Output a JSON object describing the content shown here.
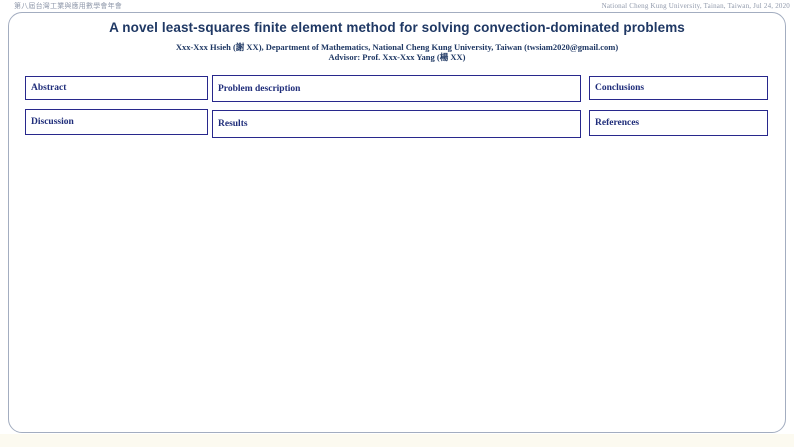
{
  "header": {
    "left_text": "第八屆台灣工業與應用數學會年會",
    "right_text": "National Cheng Kung University, Tainan, Taiwan, Jul 24, 2020"
  },
  "poster": {
    "title": "A novel least-squares finite element method for solving convection-dominated problems",
    "author_line": "Xxx-Xxx Hsieh (謝 XX), Department of Mathematics, National Cheng Kung University, Taiwan (twsiam2020@gmail.com)",
    "advisor_line": "Advisor: Prof. Xxx-Xxx Yang (楊 XX)",
    "sections": [
      {
        "id": "abstract",
        "label": "Abstract"
      },
      {
        "id": "problem-description",
        "label": "Problem description"
      },
      {
        "id": "conclusions",
        "label": "Conclusions"
      },
      {
        "id": "discussion",
        "label": "Discussion"
      },
      {
        "id": "results",
        "label": "Results"
      },
      {
        "id": "references",
        "label": "References"
      }
    ]
  },
  "colors": {
    "title_navy": "#1f3864",
    "box_border_navy": "#28288c",
    "label_navy": "#1f2d7a",
    "frame_border": "#a3adc0",
    "header_text": "#9099ab",
    "page_bottom_tint": "#fcfaf0"
  }
}
